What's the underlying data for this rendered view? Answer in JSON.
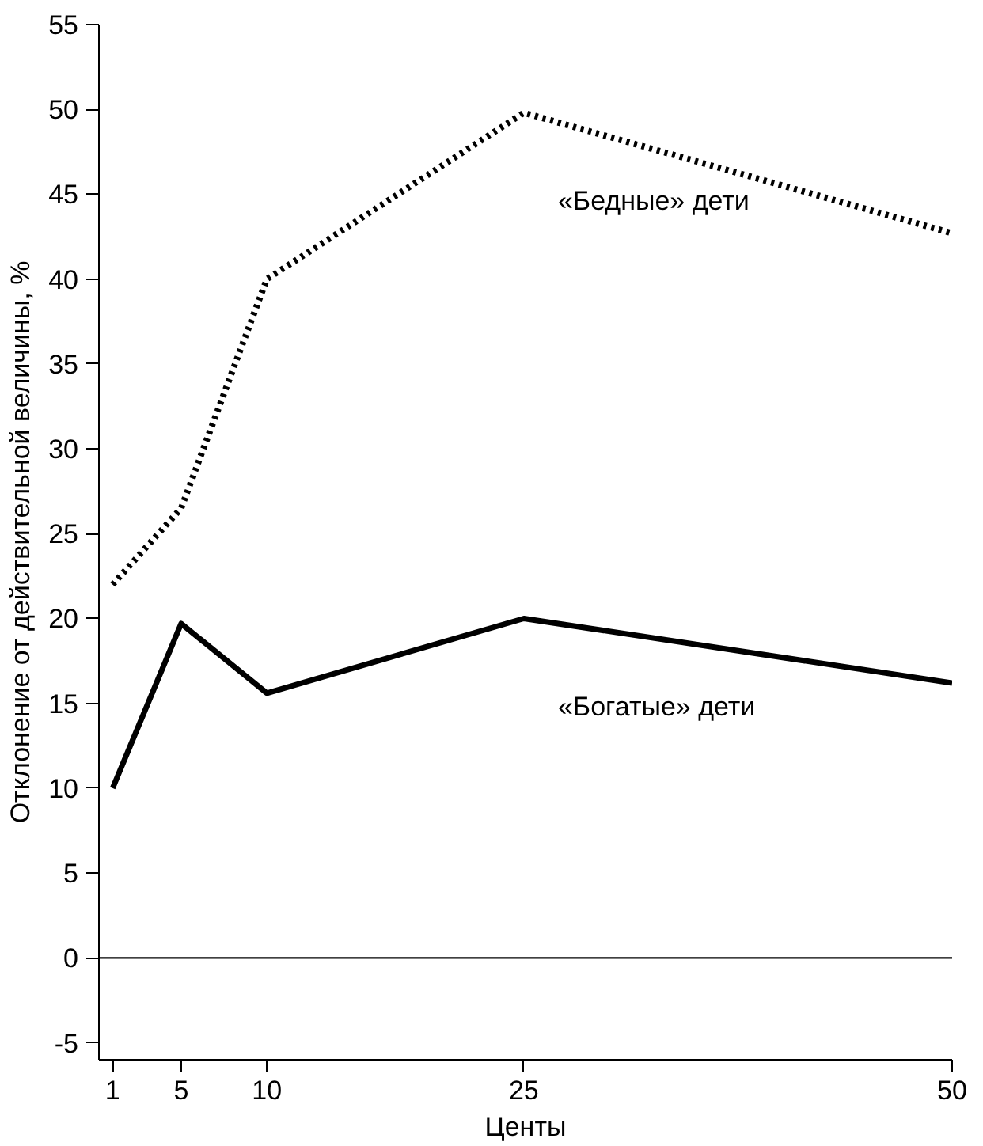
{
  "chart_data": {
    "type": "line",
    "xlabel": "Центы",
    "ylabel": "Отклонение от действительной величины, %",
    "x": [
      1,
      5,
      10,
      25,
      50
    ],
    "series": [
      {
        "name": "«Бедные» дети",
        "color": "#000000",
        "line_style": "dotted",
        "values": [
          22,
          26.5,
          40,
          49.8,
          42.7
        ]
      },
      {
        "name": "«Богатые» дети",
        "color": "#000000",
        "line_style": "solid",
        "values": [
          10,
          19.7,
          15.6,
          20,
          16.2
        ]
      }
    ],
    "xlim": [
      0.2,
      50
    ],
    "xticks": [
      1,
      5,
      10,
      25,
      50
    ],
    "ylim": [
      -6,
      55
    ],
    "yticks": [
      -5,
      0,
      5,
      10,
      15,
      20,
      25,
      30,
      35,
      40,
      45,
      50,
      55
    ],
    "ref_lines": [
      {
        "axis": "y",
        "value": 0,
        "color": "#000000"
      }
    ],
    "grid": false,
    "legend": false,
    "marker": "none"
  }
}
